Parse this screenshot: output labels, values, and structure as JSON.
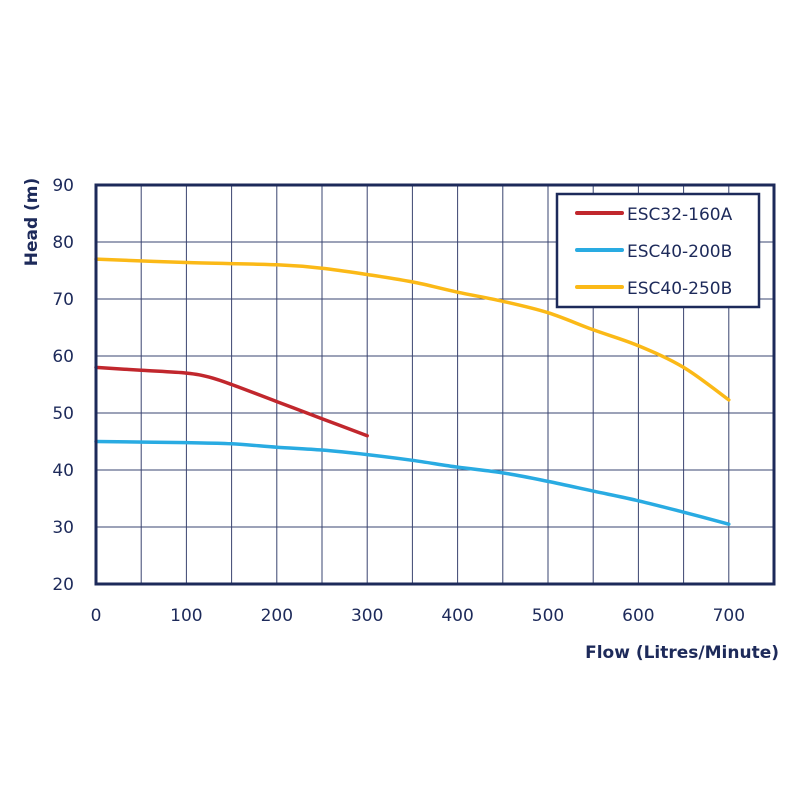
{
  "chart_data": {
    "type": "line",
    "title": "",
    "xlabel": "Flow (Litres/Minute)",
    "ylabel": "Head (m)",
    "xlim": [
      0,
      750
    ],
    "ylim": [
      20,
      90
    ],
    "xticks": [
      0,
      100,
      200,
      300,
      400,
      500,
      600,
      700
    ],
    "yticks": [
      20,
      30,
      40,
      50,
      60,
      70,
      80,
      90
    ],
    "grid": true,
    "grid_x_step": 50,
    "grid_y_step": 10,
    "legend_position": "top-right",
    "axis_color": "#1d2a5a",
    "grid_color": "#3a4470",
    "series": [
      {
        "name": "ESC32-160A",
        "color": "#c1272d",
        "x": [
          0,
          50,
          100,
          125,
          150,
          200,
          250,
          300
        ],
        "y": [
          58,
          57.5,
          57,
          56.3,
          55,
          52,
          49,
          46
        ]
      },
      {
        "name": "ESC40-200B",
        "color": "#29abe2",
        "x": [
          0,
          100,
          150,
          200,
          250,
          300,
          350,
          400,
          450,
          500,
          550,
          600,
          650,
          700
        ],
        "y": [
          45,
          44.8,
          44.6,
          44,
          43.5,
          42.7,
          41.7,
          40.5,
          39.5,
          38,
          36.3,
          34.6,
          32.6,
          30.5
        ]
      },
      {
        "name": "ESC40-250B",
        "color": "#fbb917",
        "x": [
          0,
          100,
          200,
          250,
          300,
          350,
          400,
          450,
          500,
          550,
          600,
          650,
          700
        ],
        "y": [
          77,
          76.4,
          76,
          75.4,
          74.3,
          73,
          71.2,
          69.6,
          67.6,
          64.6,
          61.8,
          58,
          52.3
        ]
      }
    ]
  }
}
